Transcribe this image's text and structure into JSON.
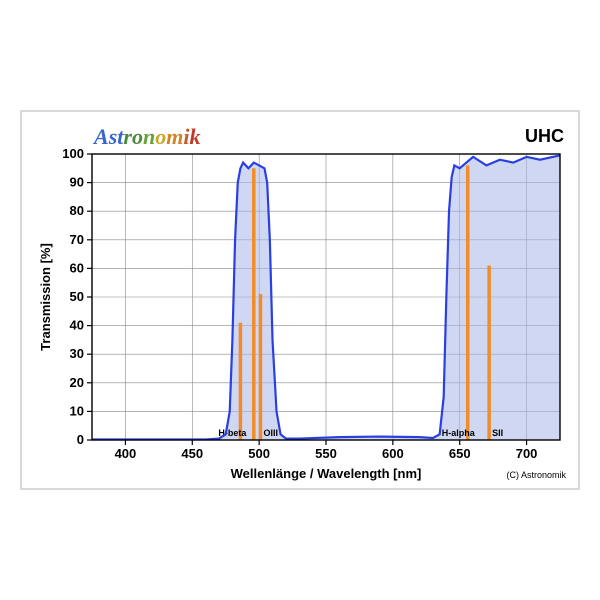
{
  "brand_text": "Astronomik",
  "brand_colors": [
    "#3a66cc",
    "#4a8a3c",
    "#6aa23a",
    "#caa52a",
    "#d2842a",
    "#c95a2a",
    "#c0392b"
  ],
  "filter_label": "UHC",
  "xlabel": "Wellenlänge / Wavelength [nm]",
  "ylabel": "Transmission [%]",
  "copyright": "(C) Astronomik",
  "xlim": [
    375,
    725
  ],
  "ylim": [
    0,
    100
  ],
  "xtick_step": 50,
  "ytick_step": 10,
  "grid_color": "#888888",
  "axis_color": "#000000",
  "background_color": "#ffffff",
  "plot_border_color": "#d8d8d8",
  "curve_color": "#2a3fe0",
  "curve_fill": "#a9b6e8",
  "curve_fill_opacity": 0.55,
  "emission_line_color": "#f28c28",
  "emission_line_width": 3.5,
  "label_fontsize": 13,
  "tick_fontsize": 13,
  "brand_fontsize": 22,
  "uhc_fontsize": 18,
  "small_label_fontsize": 9,
  "curve": [
    [
      375,
      0.2
    ],
    [
      400,
      0.2
    ],
    [
      430,
      0.2
    ],
    [
      450,
      0.2
    ],
    [
      460,
      0.2
    ],
    [
      470,
      0.5
    ],
    [
      475,
      2
    ],
    [
      478,
      10
    ],
    [
      480,
      35
    ],
    [
      482,
      70
    ],
    [
      484,
      90
    ],
    [
      486,
      95
    ],
    [
      488,
      97
    ],
    [
      492,
      95
    ],
    [
      496,
      97
    ],
    [
      500,
      96
    ],
    [
      504,
      95
    ],
    [
      506,
      90
    ],
    [
      508,
      70
    ],
    [
      510,
      35
    ],
    [
      513,
      10
    ],
    [
      516,
      2
    ],
    [
      520,
      0.5
    ],
    [
      530,
      0.5
    ],
    [
      560,
      1.0
    ],
    [
      590,
      1.2
    ],
    [
      620,
      1.0
    ],
    [
      630,
      0.7
    ],
    [
      635,
      2
    ],
    [
      638,
      15
    ],
    [
      640,
      50
    ],
    [
      642,
      80
    ],
    [
      644,
      92
    ],
    [
      646,
      96
    ],
    [
      650,
      95
    ],
    [
      655,
      97
    ],
    [
      660,
      99
    ],
    [
      670,
      96
    ],
    [
      680,
      98
    ],
    [
      690,
      97
    ],
    [
      700,
      99
    ],
    [
      710,
      98
    ],
    [
      720,
      99
    ],
    [
      725,
      99.5
    ]
  ],
  "emission_lines": [
    {
      "x": 486,
      "y": 41,
      "label": "H-beta",
      "label_dx": -22
    },
    {
      "x": 496,
      "y": 95,
      "label": "",
      "label_dx": 0
    },
    {
      "x": 501,
      "y": 51,
      "label": "OIII",
      "label_dx": 3
    },
    {
      "x": 656,
      "y": 96,
      "label": "H-alpha",
      "label_dx": -26
    },
    {
      "x": 672,
      "y": 61,
      "label": "SII",
      "label_dx": 3
    }
  ]
}
